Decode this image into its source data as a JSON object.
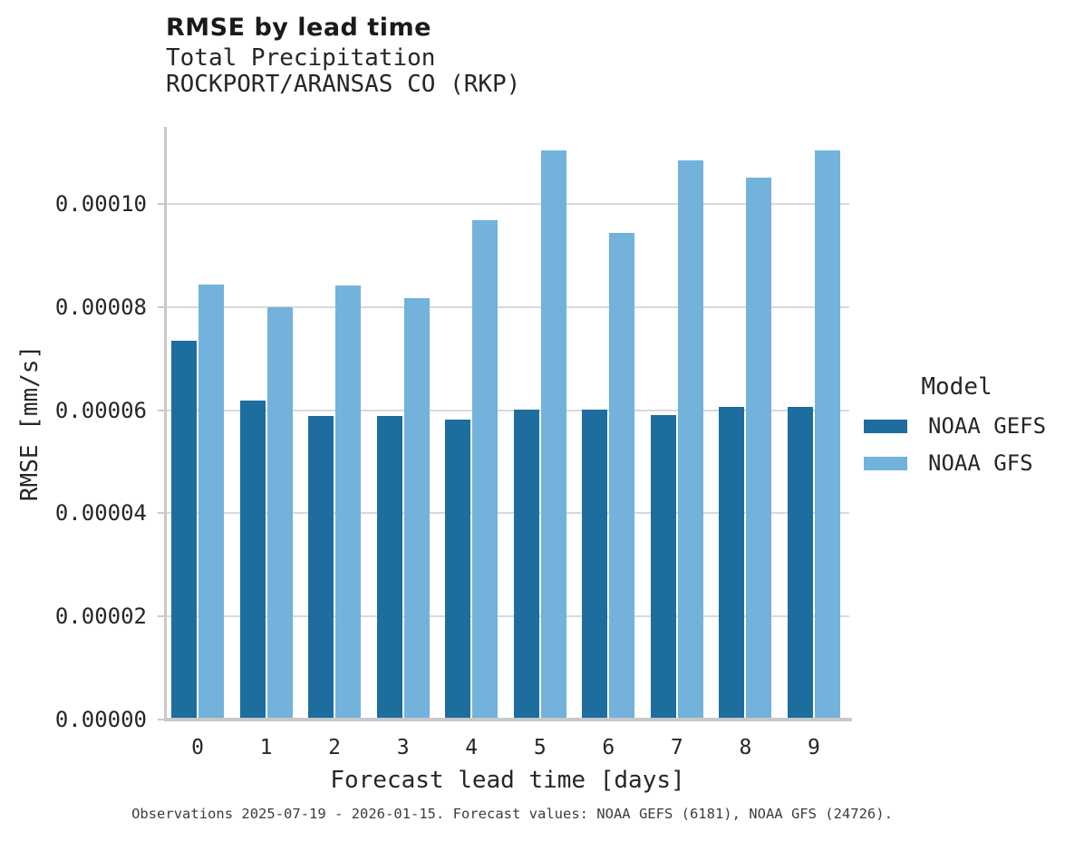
{
  "header": {
    "title": "RMSE by lead time",
    "subtitle_line1": "Total Precipitation",
    "subtitle_line2": "ROCKPORT/ARANSAS CO (RKP)"
  },
  "colors": {
    "noaa_gefs": "#1d6d9e",
    "noaa_gfs": "#72b2db",
    "gridline": "#d9d9d9",
    "axis": "#c9c9c9",
    "text": "#262626",
    "caption": "#3d3d3d"
  },
  "chart_data": {
    "type": "bar",
    "title": "RMSE by lead time",
    "subtitle": [
      "Total Precipitation",
      "ROCKPORT/ARANSAS CO (RKP)"
    ],
    "categories": [
      "0",
      "1",
      "2",
      "3",
      "4",
      "5",
      "6",
      "7",
      "8",
      "9"
    ],
    "series": [
      {
        "name": "NOAA GEFS",
        "color": "#1d6d9e",
        "values": [
          7.35e-05,
          6.18e-05,
          5.89e-05,
          5.89e-05,
          5.81e-05,
          6.01e-05,
          6.01e-05,
          5.9e-05,
          6.07e-05,
          6.07e-05
        ]
      },
      {
        "name": "NOAA GFS",
        "color": "#72b2db",
        "values": [
          8.44e-05,
          7.99e-05,
          8.41e-05,
          8.17e-05,
          9.68e-05,
          0.0001103,
          9.43e-05,
          0.0001084,
          0.0001051,
          0.0001103
        ]
      }
    ],
    "xlabel": "Forecast lead time [days]",
    "ylabel": "RMSE [mm/s]",
    "ylim": [
      0,
      0.000115
    ],
    "y_ticks": [
      0,
      2e-05,
      4e-05,
      6e-05,
      8e-05,
      0.0001
    ],
    "y_tick_labels": [
      "0.00000",
      "0.00002",
      "0.00004",
      "0.00006",
      "0.00008",
      "0.00010"
    ],
    "grid": "horizontal",
    "legend_title": "Model",
    "legend_position": "right"
  },
  "legend": {
    "title": "Model",
    "entries": [
      {
        "label": "NOAA GEFS",
        "color": "#1d6d9e"
      },
      {
        "label": "NOAA GFS",
        "color": "#72b2db"
      }
    ]
  },
  "caption": "Observations 2025-07-19 - 2026-01-15. Forecast values: NOAA GEFS (6181), NOAA GFS (24726)."
}
